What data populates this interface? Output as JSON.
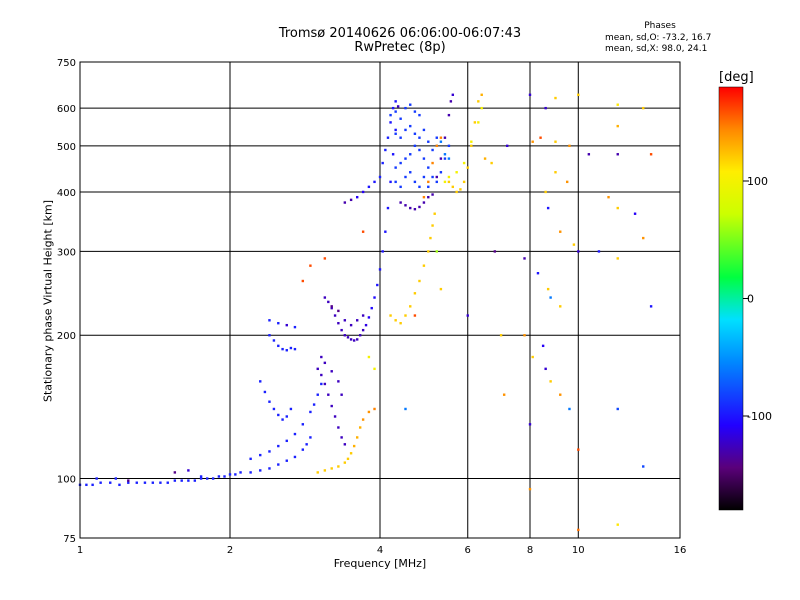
{
  "chart_data": {
    "type": "scatter",
    "title": "Tromsø 20140626 06:06:00-06:07:43",
    "subtitle": "RwPretec (8p)",
    "xlabel": "Frequency [MHz]",
    "ylabel": "Stationary phase Virtual Height [km]",
    "x_scale": "log",
    "y_scale": "log",
    "xlim": [
      1,
      16
    ],
    "ylim": [
      75,
      750
    ],
    "x_ticks": [
      1,
      2,
      4,
      6,
      8,
      10,
      16
    ],
    "y_ticks": [
      75,
      100,
      200,
      300,
      400,
      500,
      600,
      750
    ],
    "grid": true,
    "stats": {
      "heading": "Phases",
      "o_mode": "mean, sd,O: -73.2, 16.7",
      "x_mode": "mean, sd,X:  98.0, 24.1"
    },
    "colorbar": {
      "label": "[deg]",
      "range": [
        -180,
        180
      ],
      "ticks": [
        100,
        0,
        -100
      ],
      "colormap": "rainbow"
    },
    "points": [
      [
        1.0,
        97,
        -95
      ],
      [
        1.03,
        97,
        -95
      ],
      [
        1.06,
        97,
        -95
      ],
      [
        1.1,
        98,
        -95
      ],
      [
        1.15,
        98,
        -95
      ],
      [
        1.2,
        97,
        -95
      ],
      [
        1.25,
        98,
        -95
      ],
      [
        1.3,
        98,
        -95
      ],
      [
        1.35,
        98,
        -95
      ],
      [
        1.4,
        98,
        -95
      ],
      [
        1.45,
        98,
        -95
      ],
      [
        1.5,
        98,
        -95
      ],
      [
        1.55,
        99,
        -95
      ],
      [
        1.6,
        99,
        -95
      ],
      [
        1.65,
        99,
        -95
      ],
      [
        1.7,
        99,
        -95
      ],
      [
        1.75,
        100,
        -95
      ],
      [
        1.8,
        100,
        -95
      ],
      [
        1.85,
        100,
        -95
      ],
      [
        1.9,
        101,
        -95
      ],
      [
        1.95,
        101,
        -95
      ],
      [
        2.0,
        102,
        -95
      ],
      [
        2.05,
        102,
        -95
      ],
      [
        2.1,
        103,
        -95
      ],
      [
        2.2,
        103,
        -95
      ],
      [
        2.3,
        104,
        -95
      ],
      [
        2.4,
        105,
        -95
      ],
      [
        2.5,
        107,
        -95
      ],
      [
        2.6,
        109,
        -95
      ],
      [
        2.7,
        111,
        -95
      ],
      [
        2.8,
        115,
        -95
      ],
      [
        2.85,
        118,
        -95
      ],
      [
        2.9,
        122,
        -95
      ],
      [
        1.08,
        100,
        -95
      ],
      [
        1.18,
        100,
        -95
      ],
      [
        1.25,
        99,
        -140
      ],
      [
        1.55,
        103,
        -140
      ],
      [
        1.65,
        104,
        -120
      ],
      [
        1.75,
        101,
        -95
      ],
      [
        2.2,
        110,
        -95
      ],
      [
        2.3,
        112,
        -95
      ],
      [
        2.4,
        114,
        -95
      ],
      [
        2.5,
        117,
        -95
      ],
      [
        2.6,
        120,
        -95
      ],
      [
        2.7,
        124,
        -95
      ],
      [
        2.8,
        130,
        -95
      ],
      [
        2.9,
        138,
        -95
      ],
      [
        2.95,
        143,
        -95
      ],
      [
        3.0,
        150,
        -95
      ],
      [
        3.05,
        158,
        -95
      ],
      [
        2.3,
        160,
        -95
      ],
      [
        2.35,
        152,
        -95
      ],
      [
        2.4,
        145,
        -95
      ],
      [
        2.45,
        140,
        -95
      ],
      [
        2.5,
        136,
        -95
      ],
      [
        2.55,
        133,
        -95
      ],
      [
        2.6,
        135,
        -95
      ],
      [
        2.65,
        140,
        -95
      ],
      [
        2.4,
        200,
        -95
      ],
      [
        2.45,
        195,
        -95
      ],
      [
        2.5,
        190,
        -95
      ],
      [
        2.55,
        187,
        -95
      ],
      [
        2.6,
        186,
        -95
      ],
      [
        2.65,
        188,
        -95
      ],
      [
        2.7,
        187,
        -95
      ],
      [
        2.4,
        215,
        -95
      ],
      [
        2.5,
        212,
        -95
      ],
      [
        2.6,
        210,
        -120
      ],
      [
        2.7,
        208,
        -95
      ],
      [
        3.0,
        170,
        -125
      ],
      [
        3.05,
        165,
        -125
      ],
      [
        3.1,
        158,
        -125
      ],
      [
        3.15,
        150,
        -125
      ],
      [
        3.2,
        142,
        -125
      ],
      [
        3.25,
        135,
        -125
      ],
      [
        3.3,
        128,
        -125
      ],
      [
        3.35,
        122,
        -125
      ],
      [
        3.4,
        118,
        -125
      ],
      [
        3.05,
        180,
        -125
      ],
      [
        3.1,
        175,
        -125
      ],
      [
        3.2,
        168,
        -125
      ],
      [
        3.3,
        160,
        -125
      ],
      [
        3.35,
        150,
        -125
      ],
      [
        3.1,
        240,
        -125
      ],
      [
        3.15,
        235,
        -125
      ],
      [
        3.2,
        228,
        -125
      ],
      [
        3.25,
        220,
        -125
      ],
      [
        3.3,
        212,
        -125
      ],
      [
        3.35,
        205,
        -125
      ],
      [
        3.4,
        200,
        -125
      ],
      [
        3.45,
        198,
        -125
      ],
      [
        3.5,
        196,
        -125
      ],
      [
        3.55,
        195,
        -125
      ],
      [
        3.6,
        196,
        -125
      ],
      [
        3.65,
        200,
        -125
      ],
      [
        3.7,
        205,
        -125
      ],
      [
        3.75,
        210,
        -115
      ],
      [
        3.8,
        218,
        -110
      ],
      [
        3.85,
        228,
        -105
      ],
      [
        3.9,
        240,
        -105
      ],
      [
        3.95,
        255,
        -100
      ],
      [
        4.0,
        275,
        -100
      ],
      [
        4.05,
        300,
        -100
      ],
      [
        4.1,
        330,
        -100
      ],
      [
        4.15,
        370,
        -100
      ],
      [
        4.2,
        420,
        -100
      ],
      [
        4.25,
        480,
        -100
      ],
      [
        4.3,
        540,
        -100
      ],
      [
        3.2,
        230,
        -140
      ],
      [
        3.3,
        225,
        -140
      ],
      [
        3.4,
        215,
        -125
      ],
      [
        3.5,
        210,
        -125
      ],
      [
        3.6,
        215,
        -125
      ],
      [
        3.7,
        220,
        -125
      ],
      [
        3.4,
        380,
        -130
      ],
      [
        3.5,
        385,
        -130
      ],
      [
        3.6,
        390,
        -110
      ],
      [
        3.7,
        400,
        -110
      ],
      [
        3.8,
        410,
        -100
      ],
      [
        3.9,
        420,
        -100
      ],
      [
        4.0,
        430,
        -95
      ],
      [
        4.05,
        460,
        -95
      ],
      [
        4.1,
        490,
        -95
      ],
      [
        4.15,
        520,
        -95
      ],
      [
        4.2,
        560,
        -100
      ],
      [
        4.25,
        600,
        -100
      ],
      [
        4.3,
        620,
        -100
      ],
      [
        4.35,
        605,
        -125
      ],
      [
        4.3,
        450,
        -85
      ],
      [
        4.4,
        460,
        -85
      ],
      [
        4.5,
        470,
        -85
      ],
      [
        4.6,
        480,
        -85
      ],
      [
        4.7,
        500,
        -85
      ],
      [
        4.8,
        490,
        -85
      ],
      [
        4.9,
        470,
        -85
      ],
      [
        5.0,
        450,
        -85
      ],
      [
        5.1,
        430,
        -85
      ],
      [
        5.2,
        420,
        -85
      ],
      [
        5.3,
        440,
        -85
      ],
      [
        5.4,
        470,
        -85
      ],
      [
        5.5,
        500,
        -85
      ],
      [
        4.3,
        530,
        -85
      ],
      [
        4.4,
        520,
        -85
      ],
      [
        4.5,
        540,
        -85
      ],
      [
        4.6,
        550,
        -85
      ],
      [
        4.7,
        530,
        -85
      ],
      [
        4.8,
        520,
        -85
      ],
      [
        4.9,
        540,
        -85
      ],
      [
        5.0,
        510,
        -85
      ],
      [
        5.1,
        490,
        -85
      ],
      [
        5.2,
        520,
        -85
      ],
      [
        4.3,
        420,
        -85
      ],
      [
        4.4,
        410,
        -85
      ],
      [
        4.5,
        430,
        -85
      ],
      [
        4.6,
        440,
        -85
      ],
      [
        4.7,
        420,
        -85
      ],
      [
        4.8,
        410,
        -85
      ],
      [
        4.9,
        430,
        -85
      ],
      [
        5.0,
        410,
        -85
      ],
      [
        4.2,
        580,
        -85
      ],
      [
        4.3,
        590,
        -85
      ],
      [
        4.4,
        570,
        -85
      ],
      [
        4.5,
        600,
        -85
      ],
      [
        4.6,
        610,
        -85
      ],
      [
        4.7,
        590,
        -85
      ],
      [
        4.8,
        580,
        -85
      ],
      [
        4.4,
        380,
        -130
      ],
      [
        4.5,
        375,
        -130
      ],
      [
        4.6,
        370,
        -130
      ],
      [
        4.7,
        368,
        -130
      ],
      [
        4.8,
        372,
        -130
      ],
      [
        4.9,
        380,
        -130
      ],
      [
        5.0,
        390,
        -130
      ],
      [
        5.1,
        395,
        -130
      ],
      [
        5.2,
        430,
        -130
      ],
      [
        5.3,
        470,
        -130
      ],
      [
        5.4,
        520,
        -130
      ],
      [
        5.5,
        580,
        -130
      ],
      [
        5.55,
        620,
        -130
      ],
      [
        5.6,
        640,
        -120
      ],
      [
        5.2,
        500,
        -60
      ],
      [
        5.3,
        510,
        -60
      ],
      [
        5.4,
        480,
        -60
      ],
      [
        5.5,
        470,
        -60
      ],
      [
        4.2,
        220,
        120
      ],
      [
        4.3,
        215,
        120
      ],
      [
        4.4,
        212,
        120
      ],
      [
        4.5,
        220,
        120
      ],
      [
        4.6,
        230,
        120
      ],
      [
        4.7,
        245,
        120
      ],
      [
        4.8,
        260,
        120
      ],
      [
        4.9,
        280,
        120
      ],
      [
        5.0,
        300,
        120
      ],
      [
        5.05,
        320,
        120
      ],
      [
        5.1,
        340,
        120
      ],
      [
        5.15,
        360,
        120
      ],
      [
        4.9,
        390,
        145
      ],
      [
        5.0,
        420,
        145
      ],
      [
        5.1,
        460,
        145
      ],
      [
        5.2,
        500,
        145
      ],
      [
        5.3,
        520,
        145
      ],
      [
        5.5,
        420,
        120
      ],
      [
        5.6,
        410,
        120
      ],
      [
        5.7,
        400,
        120
      ],
      [
        5.8,
        405,
        120
      ],
      [
        5.9,
        420,
        120
      ],
      [
        6.0,
        450,
        120
      ],
      [
        6.1,
        500,
        120
      ],
      [
        6.2,
        560,
        120
      ],
      [
        6.3,
        620,
        120
      ],
      [
        6.4,
        640,
        130
      ],
      [
        5.4,
        420,
        100
      ],
      [
        5.5,
        430,
        100
      ],
      [
        5.7,
        440,
        100
      ],
      [
        5.9,
        460,
        100
      ],
      [
        6.1,
        510,
        100
      ],
      [
        6.3,
        560,
        100
      ],
      [
        6.4,
        600,
        100
      ],
      [
        3.0,
        103,
        120
      ],
      [
        3.1,
        104,
        120
      ],
      [
        3.2,
        105,
        120
      ],
      [
        3.3,
        106,
        120
      ],
      [
        3.4,
        108,
        120
      ],
      [
        3.45,
        110,
        120
      ],
      [
        3.5,
        113,
        120
      ],
      [
        3.55,
        117,
        130
      ],
      [
        3.6,
        122,
        130
      ],
      [
        3.65,
        128,
        130
      ],
      [
        3.7,
        133,
        140
      ],
      [
        3.8,
        138,
        140
      ],
      [
        3.9,
        140,
        145
      ],
      [
        2.8,
        260,
        160
      ],
      [
        2.9,
        280,
        160
      ],
      [
        3.1,
        290,
        160
      ],
      [
        3.7,
        330,
        160
      ],
      [
        6.8,
        300,
        -140
      ],
      [
        6.5,
        470,
        130
      ],
      [
        7.2,
        500,
        -120
      ],
      [
        6.7,
        460,
        120
      ],
      [
        3.8,
        180,
        100
      ],
      [
        3.9,
        170,
        100
      ],
      [
        4.5,
        140,
        -60
      ],
      [
        4.7,
        220,
        160
      ],
      [
        5.2,
        300,
        60
      ],
      [
        5.3,
        250,
        120
      ],
      [
        6.0,
        220,
        -120
      ],
      [
        7.0,
        200,
        120
      ],
      [
        7.1,
        150,
        140
      ],
      [
        8.0,
        130,
        -120
      ],
      [
        7.8,
        290,
        -130
      ],
      [
        8.3,
        270,
        -100
      ],
      [
        8.7,
        250,
        120
      ],
      [
        8.8,
        240,
        -60
      ],
      [
        9.2,
        230,
        120
      ],
      [
        7.8,
        200,
        140
      ],
      [
        8.1,
        180,
        120
      ],
      [
        8.5,
        190,
        -110
      ],
      [
        8.6,
        170,
        -120
      ],
      [
        8.8,
        160,
        120
      ],
      [
        9.2,
        150,
        140
      ],
      [
        9.6,
        140,
        -60
      ],
      [
        8.0,
        640,
        -120
      ],
      [
        8.6,
        600,
        -120
      ],
      [
        9.0,
        630,
        120
      ],
      [
        10.0,
        640,
        120
      ],
      [
        12.0,
        610,
        110
      ],
      [
        12.0,
        550,
        130
      ],
      [
        13.5,
        600,
        120
      ],
      [
        8.1,
        510,
        140
      ],
      [
        8.4,
        520,
        160
      ],
      [
        9.0,
        510,
        120
      ],
      [
        9.6,
        500,
        140
      ],
      [
        10.5,
        480,
        -130
      ],
      [
        12.0,
        480,
        -130
      ],
      [
        14.0,
        480,
        160
      ],
      [
        8.6,
        400,
        120
      ],
      [
        8.7,
        370,
        -100
      ],
      [
        9.2,
        330,
        140
      ],
      [
        9.8,
        310,
        120
      ],
      [
        10.0,
        300,
        -120
      ],
      [
        11.0,
        300,
        -100
      ],
      [
        12.0,
        290,
        120
      ],
      [
        9.0,
        440,
        120
      ],
      [
        9.5,
        420,
        140
      ],
      [
        11.5,
        390,
        140
      ],
      [
        12.0,
        370,
        120
      ],
      [
        13.0,
        360,
        -110
      ],
      [
        13.5,
        320,
        140
      ],
      [
        8.0,
        95,
        140
      ],
      [
        10.0,
        78,
        150
      ],
      [
        12.0,
        80,
        110
      ],
      [
        13.5,
        106,
        -80
      ],
      [
        14.0,
        230,
        -100
      ],
      [
        12.0,
        140,
        -80
      ],
      [
        10.0,
        115,
        160
      ]
    ]
  }
}
